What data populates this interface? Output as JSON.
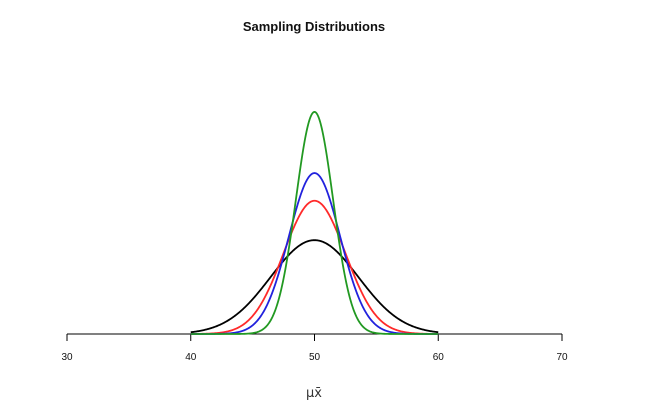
{
  "chart_data": {
    "type": "line",
    "title": "Sampling Distributions",
    "xlabel": "μx̄",
    "ylabel": "",
    "xlim": [
      30,
      70
    ],
    "ylim": [
      0,
      0.4
    ],
    "x_ticks": [
      30,
      40,
      50,
      60,
      70
    ],
    "x_tick_labels": [
      "30",
      "40",
      "50",
      "60",
      "70"
    ],
    "grid": false,
    "legend": "none",
    "mean": 50,
    "series": [
      {
        "color": "#000000",
        "distribution": "normal",
        "mean": 50,
        "sd": 3.55,
        "x_range": [
          40,
          60
        ],
        "peak_density": 0.112
      },
      {
        "color": "#ff2a2a",
        "distribution": "normal",
        "mean": 50,
        "sd": 2.5,
        "x_range": [
          40,
          60
        ],
        "peak_density": 0.16
      },
      {
        "color": "#2222dd",
        "distribution": "normal",
        "mean": 50,
        "sd": 2.07,
        "x_range": [
          40,
          60
        ],
        "peak_density": 0.193
      },
      {
        "color": "#229922",
        "distribution": "normal",
        "mean": 50,
        "sd": 1.5,
        "x_range": [
          40,
          60
        ],
        "peak_density": 0.266
      }
    ]
  }
}
